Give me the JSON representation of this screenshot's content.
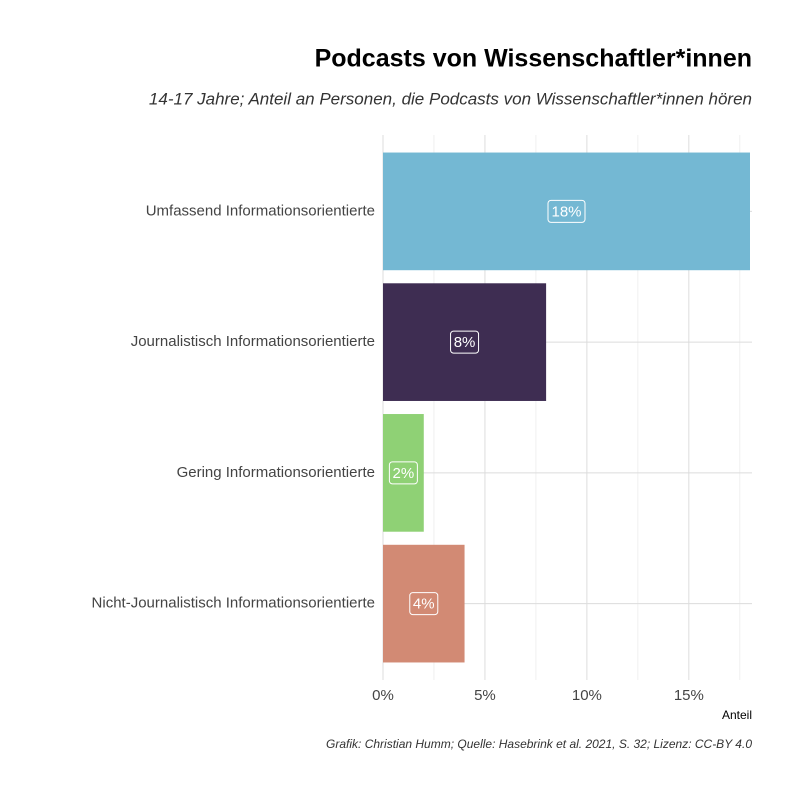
{
  "chart_data": {
    "type": "bar",
    "orientation": "horizontal",
    "title": "Podcasts von Wissenschaftler*innen",
    "subtitle": "14-17 Jahre; Anteil an Personen, die Podcasts von Wissenschaftler*innen hören",
    "x_label": "Anteil",
    "caption": "Grafik: Christian Humm; Quelle: Hasebrink et al. 2021, S. 32; Lizenz: CC-BY 4.0",
    "categories": [
      "Umfassend Informationsorientierte",
      "Journalistisch Informationsorientierte",
      "Gering Informationsorientierte",
      "Nicht-Journalistisch Informationsorientierte"
    ],
    "values": [
      18,
      8,
      2,
      4
    ],
    "value_labels": [
      "18%",
      "8%",
      "2%",
      "4%"
    ],
    "colors": [
      "#74b8d3",
      "#3e2d52",
      "#8fd175",
      "#d28a74"
    ],
    "xlim": [
      0,
      18
    ],
    "xticks": [
      {
        "value": 0,
        "label": "0%"
      },
      {
        "value": 5,
        "label": "5%"
      },
      {
        "value": 10,
        "label": "10%"
      },
      {
        "value": 15,
        "label": "15%"
      }
    ],
    "minor_xticks": [
      2.5,
      7.5,
      12.5,
      17.5
    ],
    "grid": true
  }
}
